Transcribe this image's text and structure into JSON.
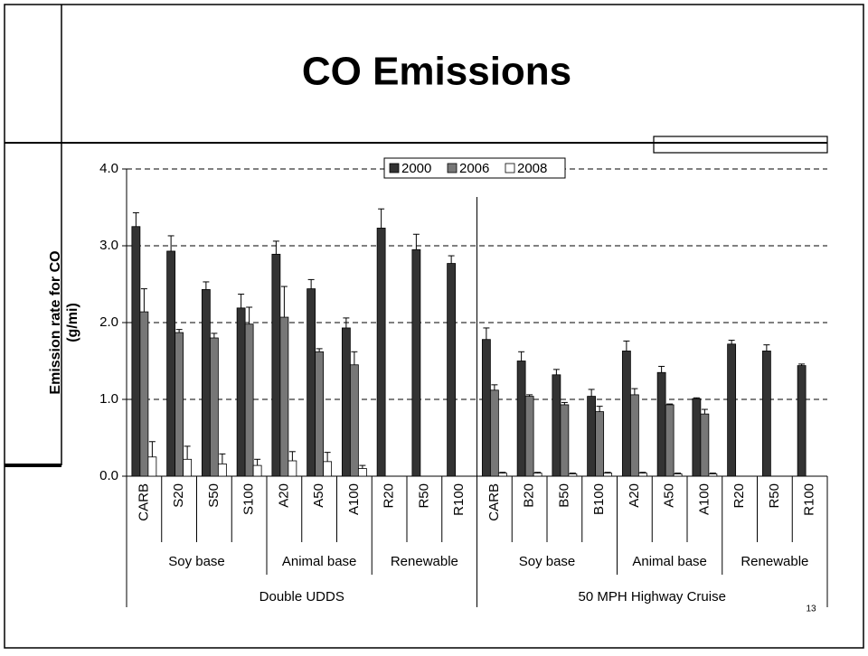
{
  "chart_data": {
    "type": "bar",
    "title": "CO Emissions",
    "ylabel": [
      "Emission rate for CO",
      "(g/mi)"
    ],
    "page_number": "13",
    "category_groups": [
      {
        "label": "Double UDDS",
        "groups": [
          {
            "label": "Soy base",
            "categories": [
              "CARB",
              "S20",
              "S50",
              "S100"
            ]
          },
          {
            "label": "Animal base",
            "categories": [
              "A20",
              "A50",
              "A100"
            ]
          },
          {
            "label": "Renewable",
            "categories": [
              "R20",
              "R50",
              "R100"
            ]
          }
        ]
      },
      {
        "label": "50 MPH Highway Cruise",
        "groups": [
          {
            "label": "Soy base",
            "categories": [
              "CARB",
              "B20",
              "B50",
              "B100"
            ]
          },
          {
            "label": "Animal base",
            "categories": [
              "A20",
              "A50",
              "A100"
            ]
          },
          {
            "label": "Renewable",
            "categories": [
              "R20",
              "R50",
              "R100"
            ]
          }
        ]
      }
    ],
    "series": [
      {
        "name": "2000",
        "color": "#333333",
        "values": [
          3.25,
          2.93,
          2.43,
          2.19,
          2.89,
          2.44,
          1.93,
          3.23,
          2.95,
          2.77,
          1.78,
          1.5,
          1.32,
          1.04,
          1.63,
          1.35,
          1.01,
          1.72,
          1.63,
          1.44
        ],
        "errors": [
          0.18,
          0.2,
          0.1,
          0.18,
          0.17,
          0.12,
          0.13,
          0.25,
          0.2,
          0.1,
          0.15,
          0.12,
          0.07,
          0.09,
          0.13,
          0.08,
          0.01,
          0.05,
          0.08,
          0.02
        ]
      },
      {
        "name": "2006",
        "color": "#777777",
        "values": [
          2.14,
          1.87,
          1.8,
          1.98,
          2.07,
          1.62,
          1.45,
          null,
          null,
          null,
          1.12,
          1.04,
          0.93,
          0.84,
          1.06,
          0.93,
          0.81,
          null,
          null,
          null
        ],
        "errors": [
          0.3,
          0.04,
          0.06,
          0.22,
          0.4,
          0.04,
          0.17,
          null,
          null,
          null,
          0.07,
          0.02,
          0.03,
          0.07,
          0.08,
          0.01,
          0.06,
          null,
          null,
          null
        ]
      },
      {
        "name": "2008",
        "color": "#ffffff",
        "values": [
          0.25,
          0.22,
          0.16,
          0.14,
          0.2,
          0.19,
          0.1,
          null,
          null,
          null,
          0.04,
          0.04,
          0.03,
          0.04,
          0.04,
          0.03,
          0.03,
          null,
          null,
          null
        ],
        "errors": [
          0.2,
          0.17,
          0.13,
          0.08,
          0.12,
          0.12,
          0.04,
          null,
          null,
          null,
          0.01,
          0.01,
          0.01,
          0.01,
          0.01,
          0.01,
          0.01,
          null,
          null,
          null
        ]
      }
    ],
    "ylim": [
      0,
      4
    ],
    "yticks": [
      {
        "value": 0,
        "label": "0.0"
      },
      {
        "value": 1,
        "label": "1.0"
      },
      {
        "value": 2,
        "label": "2.0"
      },
      {
        "value": 3,
        "label": "3.0"
      },
      {
        "value": 4,
        "label": "4.0"
      }
    ],
    "grid": true,
    "legend": "top"
  }
}
